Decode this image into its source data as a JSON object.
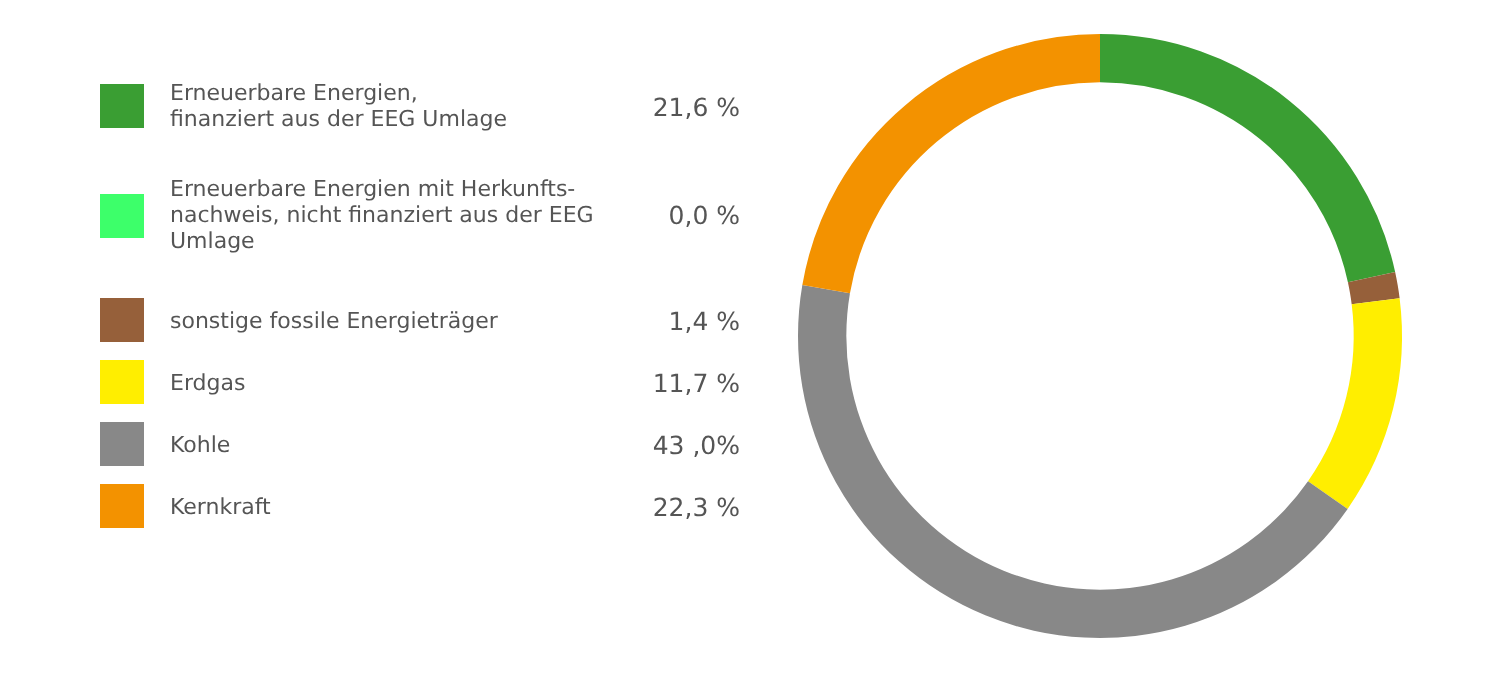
{
  "chart_data": {
    "type": "donut",
    "categories": [
      "Erneuerbare Energien,\nfinanziert aus der EEG Umlage",
      "Erneuerbare Energien mit Herkunfts-\nnachweis, nicht finanziert aus der EEG\nUmlage",
      "sonstige fossile Energieträger",
      "Erdgas",
      "Kohle",
      "Kernkraft"
    ],
    "values": [
      21.6,
      0.0,
      1.4,
      11.7,
      43.0,
      22.3
    ],
    "value_labels": [
      "21,6 %",
      "0,0 %",
      "1,4 %",
      "11,7 %",
      "43 ,0%",
      "22,3 %"
    ],
    "colors": [
      "#3a9e33",
      "#3dff6a",
      "#96603a",
      "#ffee00",
      "#888888",
      "#f39200"
    ],
    "legend": "left"
  }
}
